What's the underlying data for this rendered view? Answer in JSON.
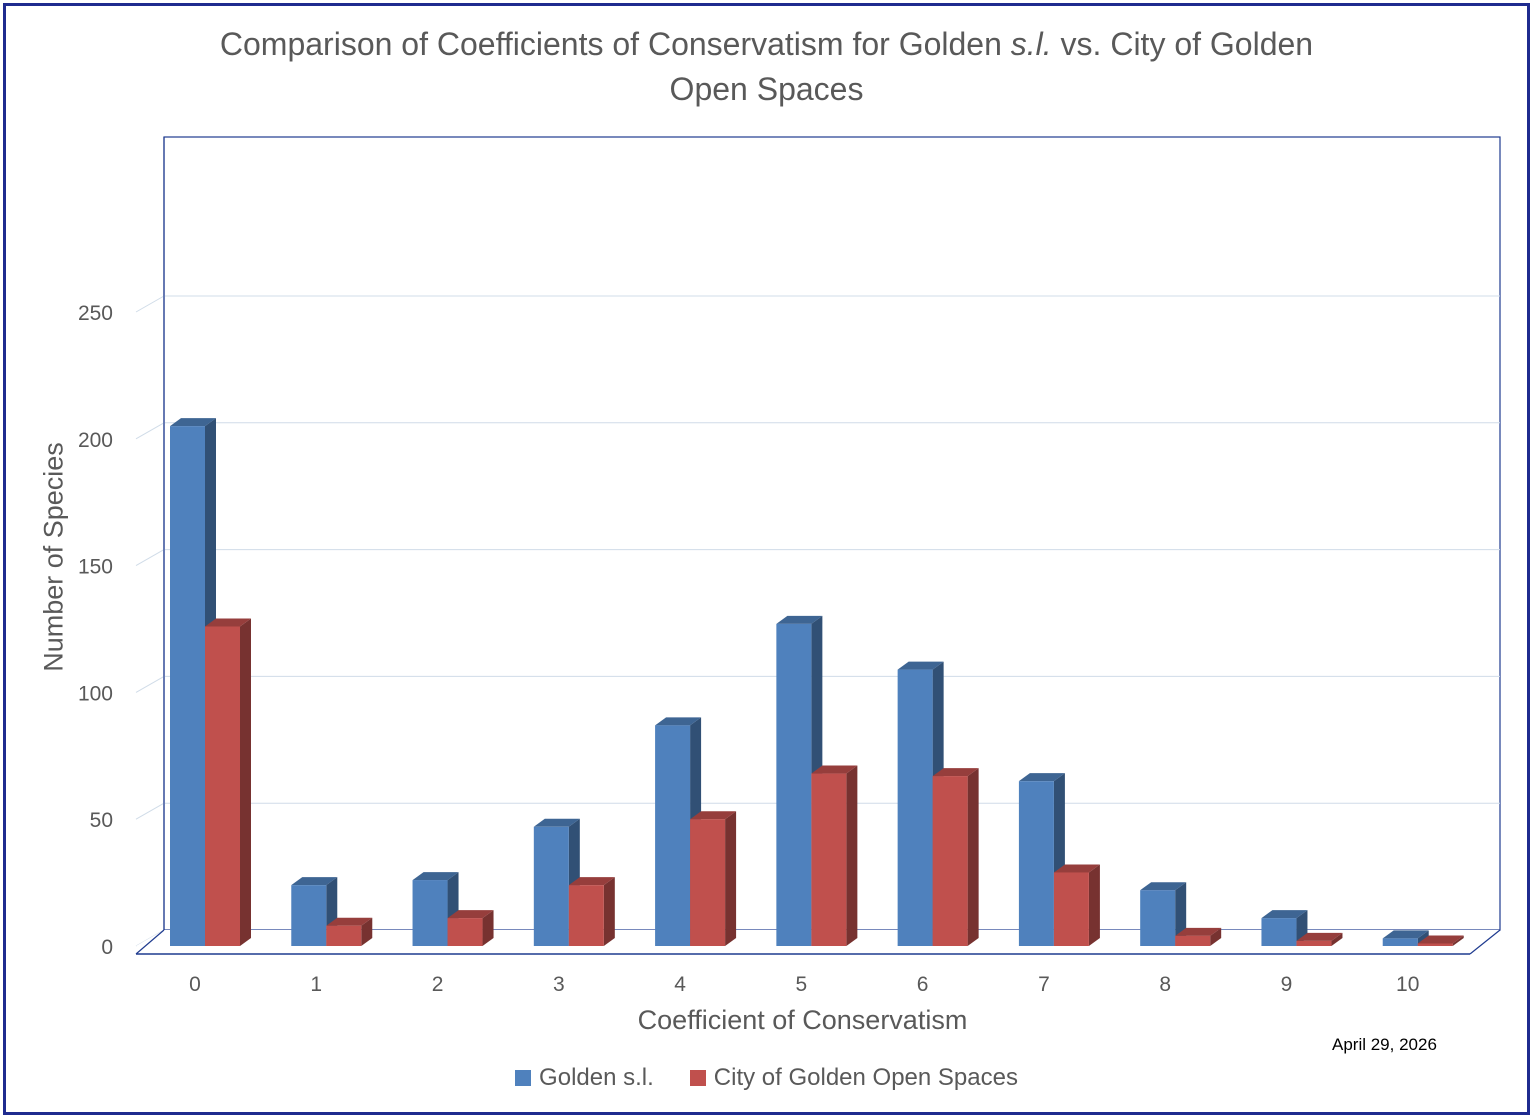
{
  "chart_data": {
    "type": "bar",
    "title_line1": "Comparison of Coefficients of Conservatism for Golden",
    "title_italic": "s.l.",
    "title_line1_end": "vs. City of Golden",
    "title_line2": "Open Spaces",
    "xlabel": "Coefficient of Conservatism",
    "ylabel": "Number of Species",
    "categories": [
      "0",
      "1",
      "2",
      "3",
      "4",
      "5",
      "6",
      "7",
      "8",
      "9",
      "10"
    ],
    "ylim": [
      0,
      250
    ],
    "yticks": [
      "0",
      "50",
      "100",
      "150",
      "200",
      "250"
    ],
    "grid": true,
    "legend_position": "bottom",
    "series": [
      {
        "name": "Golden s.l.",
        "color": "#4f81bd",
        "values": [
          205,
          24,
          26,
          47,
          87,
          127,
          109,
          65,
          22,
          11,
          3
        ]
      },
      {
        "name": "City of Golden Open Spaces",
        "color": "#c0504d",
        "values": [
          126,
          8,
          11,
          24,
          50,
          68,
          67,
          29,
          4,
          2,
          1
        ]
      }
    ]
  },
  "annotations": {
    "date": "April 29, 2026"
  }
}
